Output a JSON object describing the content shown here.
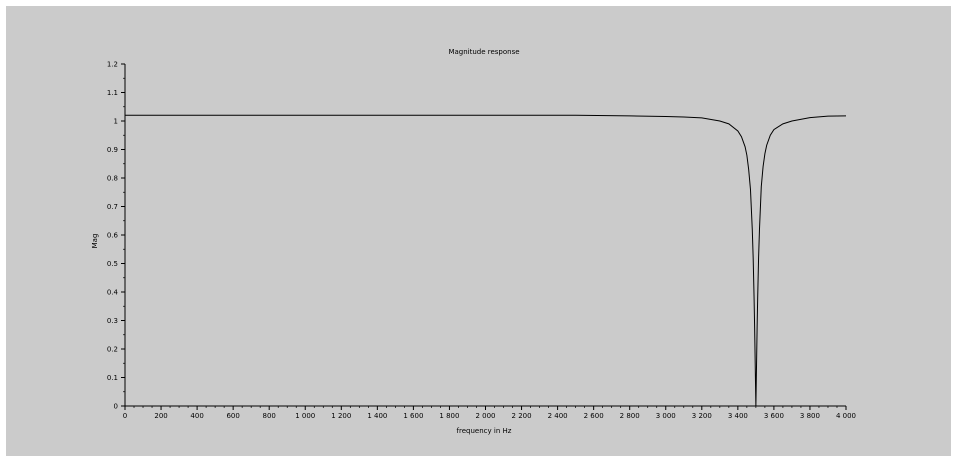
{
  "chart_data": {
    "type": "line",
    "title": "Magnitude response",
    "xlabel": "frequency in Hz",
    "ylabel": "Mag",
    "xlim": [
      0,
      4000
    ],
    "ylim": [
      0,
      1.2
    ],
    "x_ticks": [
      0,
      200,
      400,
      600,
      800,
      1000,
      1200,
      1400,
      1600,
      1800,
      2000,
      2200,
      2400,
      2600,
      2800,
      3000,
      3200,
      3400,
      3600,
      3800,
      4000
    ],
    "x_tick_labels": [
      "0",
      "200",
      "400",
      "600",
      "800",
      "1 000",
      "1 200",
      "1 400",
      "1 600",
      "1 800",
      "2 000",
      "2 200",
      "2 400",
      "2 600",
      "2 800",
      "3 000",
      "3 200",
      "3 400",
      "3 600",
      "3 800",
      "4 000"
    ],
    "y_ticks": [
      0,
      0.1,
      0.2,
      0.3,
      0.4,
      0.5,
      0.6,
      0.7,
      0.8,
      0.9,
      1,
      1.1,
      1.2
    ],
    "y_tick_labels": [
      "0",
      "0.1",
      "0.2",
      "0.3",
      "0.4",
      "0.5",
      "0.6",
      "0.7",
      "0.8",
      "0.9",
      "1",
      "1.1",
      "1.2"
    ],
    "grid": false,
    "series": [
      {
        "color": "#000000",
        "x": [
          0,
          500,
          1000,
          1500,
          2000,
          2500,
          2800,
          3000,
          3100,
          3200,
          3300,
          3350,
          3400,
          3420,
          3440,
          3450,
          3460,
          3470,
          3480,
          3485,
          3490,
          3493,
          3496,
          3498,
          3500,
          3502,
          3504,
          3507,
          3510,
          3515,
          3520,
          3530,
          3540,
          3550,
          3560,
          3580,
          3600,
          3650,
          3700,
          3800,
          3900,
          4000
        ],
        "y": [
          1.02,
          1.02,
          1.02,
          1.02,
          1.02,
          1.02,
          1.018,
          1.016,
          1.014,
          1.011,
          1.0,
          0.99,
          0.965,
          0.945,
          0.91,
          0.88,
          0.83,
          0.76,
          0.62,
          0.52,
          0.38,
          0.28,
          0.16,
          0.08,
          0.0,
          0.08,
          0.16,
          0.28,
          0.38,
          0.52,
          0.62,
          0.77,
          0.84,
          0.885,
          0.915,
          0.95,
          0.97,
          0.99,
          1.0,
          1.012,
          1.017,
          1.018
        ]
      }
    ]
  }
}
